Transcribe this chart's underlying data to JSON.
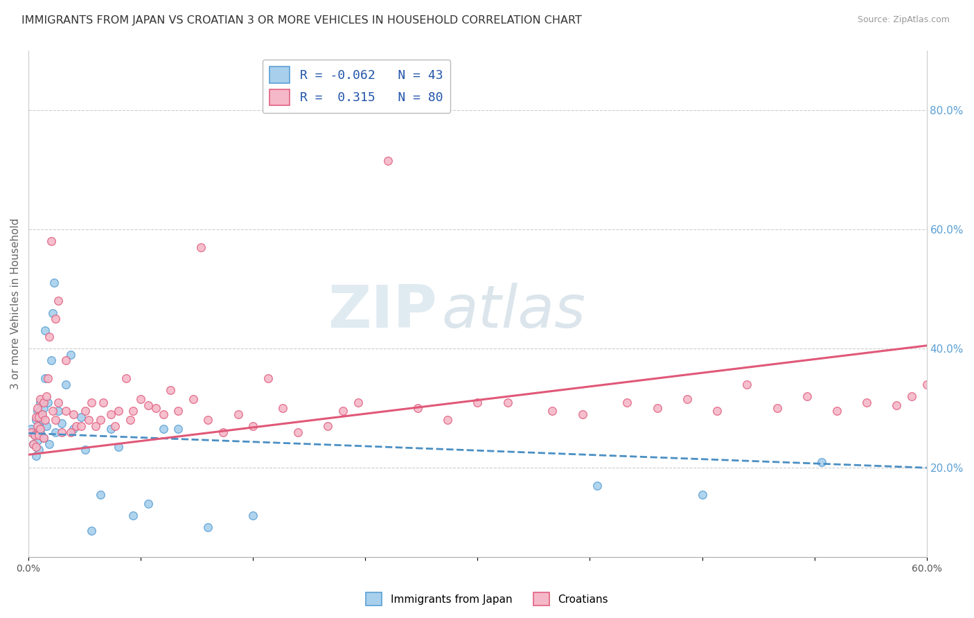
{
  "title": "IMMIGRANTS FROM JAPAN VS CROATIAN 3 OR MORE VEHICLES IN HOUSEHOLD CORRELATION CHART",
  "source": "Source: ZipAtlas.com",
  "ylabel": "3 or more Vehicles in Household",
  "yaxis_tick_values": [
    0.2,
    0.4,
    0.6,
    0.8
  ],
  "xlim": [
    0.0,
    0.6
  ],
  "ylim": [
    0.05,
    0.9
  ],
  "legend_label_japan": "Immigrants from Japan",
  "legend_label_croatian": "Croatians",
  "R_japan": -0.062,
  "N_japan": 43,
  "R_croatian": 0.315,
  "N_croatian": 80,
  "color_japan": "#a8d0ec",
  "color_croatian": "#f5b8c8",
  "edge_color_japan": "#5a9fd4",
  "edge_color_croatian": "#e06080",
  "line_color_japan": "#4a8fc4",
  "line_color_croatian": "#e05878",
  "watermark_color": "#d8e8f0",
  "japan_x": [
    0.002,
    0.003,
    0.004,
    0.005,
    0.005,
    0.006,
    0.006,
    0.007,
    0.007,
    0.008,
    0.008,
    0.009,
    0.01,
    0.01,
    0.011,
    0.011,
    0.012,
    0.013,
    0.014,
    0.015,
    0.016,
    0.017,
    0.018,
    0.02,
    0.022,
    0.025,
    0.028,
    0.03,
    0.035,
    0.038,
    0.042,
    0.048,
    0.055,
    0.06,
    0.07,
    0.08,
    0.09,
    0.1,
    0.12,
    0.15,
    0.38,
    0.45,
    0.53
  ],
  "japan_y": [
    0.265,
    0.24,
    0.255,
    0.22,
    0.28,
    0.245,
    0.295,
    0.23,
    0.27,
    0.26,
    0.31,
    0.285,
    0.25,
    0.3,
    0.43,
    0.35,
    0.27,
    0.31,
    0.24,
    0.38,
    0.46,
    0.51,
    0.26,
    0.295,
    0.275,
    0.34,
    0.39,
    0.265,
    0.285,
    0.23,
    0.095,
    0.155,
    0.265,
    0.235,
    0.12,
    0.14,
    0.265,
    0.265,
    0.1,
    0.12,
    0.17,
    0.155,
    0.21
  ],
  "croatian_x": [
    0.002,
    0.003,
    0.004,
    0.005,
    0.005,
    0.006,
    0.006,
    0.007,
    0.007,
    0.008,
    0.008,
    0.009,
    0.01,
    0.01,
    0.011,
    0.012,
    0.013,
    0.014,
    0.015,
    0.016,
    0.018,
    0.018,
    0.02,
    0.02,
    0.022,
    0.025,
    0.025,
    0.028,
    0.03,
    0.032,
    0.035,
    0.038,
    0.04,
    0.042,
    0.045,
    0.048,
    0.05,
    0.055,
    0.058,
    0.06,
    0.065,
    0.068,
    0.07,
    0.075,
    0.08,
    0.085,
    0.09,
    0.095,
    0.1,
    0.11,
    0.115,
    0.12,
    0.13,
    0.14,
    0.15,
    0.16,
    0.17,
    0.18,
    0.2,
    0.21,
    0.22,
    0.24,
    0.26,
    0.28,
    0.3,
    0.32,
    0.35,
    0.37,
    0.4,
    0.42,
    0.44,
    0.46,
    0.48,
    0.5,
    0.52,
    0.54,
    0.56,
    0.58,
    0.59,
    0.6
  ],
  "croatian_y": [
    0.26,
    0.24,
    0.255,
    0.235,
    0.285,
    0.27,
    0.3,
    0.255,
    0.285,
    0.265,
    0.315,
    0.29,
    0.25,
    0.31,
    0.28,
    0.32,
    0.35,
    0.42,
    0.58,
    0.295,
    0.45,
    0.28,
    0.31,
    0.48,
    0.26,
    0.38,
    0.295,
    0.26,
    0.29,
    0.27,
    0.27,
    0.295,
    0.28,
    0.31,
    0.27,
    0.28,
    0.31,
    0.29,
    0.27,
    0.295,
    0.35,
    0.28,
    0.295,
    0.315,
    0.305,
    0.3,
    0.29,
    0.33,
    0.295,
    0.315,
    0.57,
    0.28,
    0.26,
    0.29,
    0.27,
    0.35,
    0.3,
    0.26,
    0.27,
    0.295,
    0.31,
    0.715,
    0.3,
    0.28,
    0.31,
    0.31,
    0.295,
    0.29,
    0.31,
    0.3,
    0.315,
    0.295,
    0.34,
    0.3,
    0.32,
    0.295,
    0.31,
    0.305,
    0.32,
    0.34
  ]
}
